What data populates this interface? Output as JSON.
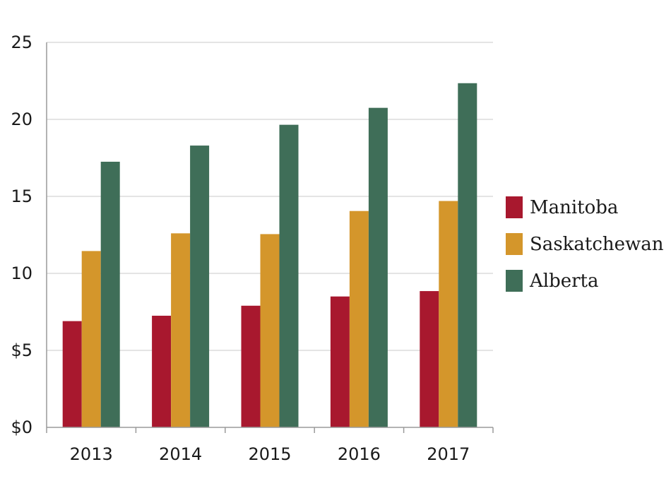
{
  "chart_data": {
    "type": "bar",
    "categories": [
      "2013",
      "2014",
      "2015",
      "2016",
      "2017"
    ],
    "series": [
      {
        "name": "Manitoba",
        "values": [
          6.9,
          7.25,
          7.9,
          8.5,
          8.85
        ],
        "color": "#A8182E"
      },
      {
        "name": "Saskatchewan",
        "values": [
          11.45,
          12.6,
          12.55,
          14.05,
          14.7
        ],
        "color": "#D4962B"
      },
      {
        "name": "Alberta",
        "values": [
          17.25,
          18.3,
          19.65,
          20.75,
          22.35
        ],
        "color": "#3F6E58"
      }
    ],
    "y_ticks": [
      {
        "value": 0,
        "label": "$0"
      },
      {
        "value": 5,
        "label": "$5"
      },
      {
        "value": 10,
        "label": "10"
      },
      {
        "value": 15,
        "label": "15"
      },
      {
        "value": 20,
        "label": "20"
      },
      {
        "value": 25,
        "label": "25"
      }
    ],
    "ylim": [
      0,
      25
    ],
    "grid": true,
    "legend_position": "right",
    "title": "",
    "xlabel": "",
    "ylabel": ""
  }
}
